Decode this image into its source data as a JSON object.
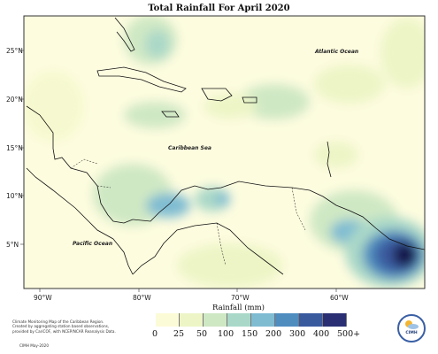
{
  "title": "Total Rainfall For April 2020",
  "lat_labels": [
    "25°N",
    "20°N",
    "15°N",
    "10°N",
    "5°N"
  ],
  "lon_labels": [
    "90°W",
    "80°W",
    "70°W",
    "60°W"
  ],
  "oceans": {
    "atlantic": "Atlantic Ocean",
    "caribbean": "Caribbean Sea",
    "pacific": "Pacific Ocean"
  },
  "legend": {
    "title": "Rainfall (mm)",
    "levels": [
      "0",
      "25",
      "50",
      "100",
      "150",
      "200",
      "300",
      "400",
      "500+"
    ],
    "colors": [
      "#fbfbd8",
      "#edf5c6",
      "#cfe8c4",
      "#aad8c8",
      "#7fbcd2",
      "#4f8dbf",
      "#3a5a9e",
      "#2a2f73",
      "#14174a"
    ]
  },
  "credit": {
    "text": "Climate Monitoring Map of the Caribbean Region. Created by aggregating station based observations, provided by CariCOF, with NCEP/NCAR Reanalysis Data.",
    "footer": "CIMH May-2020"
  },
  "logo": {
    "label": "CIMH"
  }
}
